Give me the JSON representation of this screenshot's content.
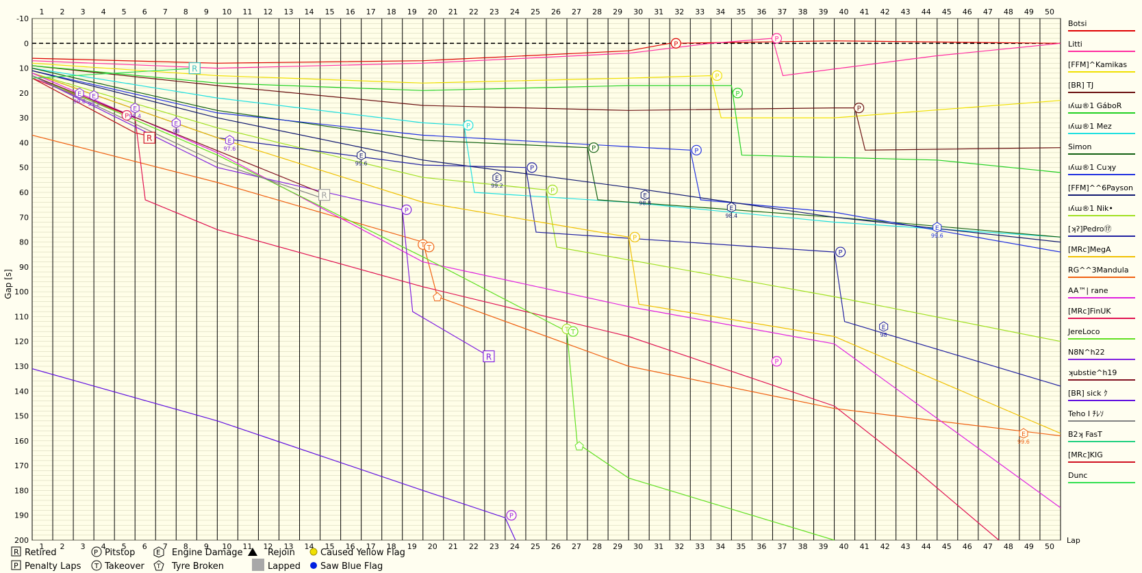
{
  "chart_data": {
    "type": "line",
    "title": "",
    "xlabel": "Lap",
    "ylabel": "Gap [s]",
    "xlim": [
      1,
      51
    ],
    "ylim": [
      -10,
      200
    ],
    "y_ticks": [
      -10,
      0,
      10,
      20,
      30,
      40,
      50,
      60,
      70,
      80,
      90,
      100,
      110,
      120,
      130,
      140,
      150,
      160,
      170,
      180,
      190,
      200
    ],
    "x_ticks": [
      1,
      2,
      3,
      4,
      5,
      6,
      7,
      8,
      9,
      10,
      11,
      12,
      13,
      14,
      15,
      16,
      17,
      18,
      19,
      20,
      21,
      22,
      23,
      24,
      25,
      26,
      27,
      28,
      29,
      30,
      31,
      32,
      33,
      34,
      35,
      36,
      37,
      38,
      39,
      40,
      41,
      42,
      43,
      44,
      45,
      46,
      47,
      48,
      49,
      50
    ],
    "legend_position": "right",
    "series": [
      {
        "name": "Botsi",
        "color": "#e00000",
        "points": [
          [
            1,
            6
          ],
          [
            10,
            8
          ],
          [
            20,
            7
          ],
          [
            30,
            3
          ],
          [
            32,
            0
          ],
          [
            40,
            -1
          ],
          [
            51,
            0
          ]
        ]
      },
      {
        "name": "Litti",
        "color": "#ff2aa0",
        "points": [
          [
            1,
            7
          ],
          [
            10,
            10
          ],
          [
            20,
            8
          ],
          [
            30,
            4
          ],
          [
            34,
            0
          ],
          [
            37,
            -2
          ],
          [
            37.5,
            13
          ],
          [
            45,
            5
          ],
          [
            51,
            0
          ]
        ]
      },
      {
        "name": "[FFM]^Kamikas",
        "color": "#f0e000",
        "points": [
          [
            1,
            8
          ],
          [
            10,
            13
          ],
          [
            20,
            16
          ],
          [
            30,
            14
          ],
          [
            34,
            13
          ],
          [
            34.5,
            30
          ],
          [
            40,
            30
          ],
          [
            51,
            23
          ]
        ]
      },
      {
        "name": "[BR] TJ",
        "color": "#6a1010",
        "points": [
          [
            1,
            9
          ],
          [
            10,
            17
          ],
          [
            20,
            25
          ],
          [
            30,
            27
          ],
          [
            40,
            26
          ],
          [
            41,
            26
          ],
          [
            41.5,
            43
          ],
          [
            51,
            42
          ]
        ]
      },
      {
        "name": "ıʎɯ®1 GáboR",
        "color": "#20d020",
        "points": [
          [
            1,
            9
          ],
          [
            10,
            16
          ],
          [
            20,
            19
          ],
          [
            30,
            17
          ],
          [
            35,
            17
          ],
          [
            35.5,
            45
          ],
          [
            45,
            47
          ],
          [
            51,
            52
          ]
        ]
      },
      {
        "name": "ıʎɯ®1 Mez",
        "color": "#20e0e0",
        "points": [
          [
            1,
            10
          ],
          [
            10,
            22
          ],
          [
            20,
            32
          ],
          [
            22,
            33
          ],
          [
            22.5,
            60
          ],
          [
            30,
            64
          ],
          [
            40,
            72
          ],
          [
            51,
            78
          ]
        ]
      },
      {
        "name": "Simon",
        "color": "#106010",
        "points": [
          [
            1,
            10
          ],
          [
            10,
            27
          ],
          [
            20,
            39
          ],
          [
            28,
            42
          ],
          [
            28.5,
            63
          ],
          [
            40,
            70
          ],
          [
            51,
            78
          ]
        ]
      },
      {
        "name": "ıʎɯ®1 Cuʞy",
        "color": "#2030e0",
        "points": [
          [
            1,
            11
          ],
          [
            10,
            28
          ],
          [
            20,
            37
          ],
          [
            33,
            43
          ],
          [
            33.5,
            63
          ],
          [
            40,
            68
          ],
          [
            51,
            84
          ]
        ]
      },
      {
        "name": "[FFM]^^6Payson",
        "color": "#101870",
        "points": [
          [
            1,
            11
          ],
          [
            10,
            30
          ],
          [
            20,
            47
          ],
          [
            30,
            58
          ],
          [
            40,
            70
          ],
          [
            51,
            80
          ]
        ]
      },
      {
        "name": "ıʎɯ®1 Nik•",
        "color": "#a0e020",
        "points": [
          [
            1,
            12
          ],
          [
            10,
            34
          ],
          [
            20,
            54
          ],
          [
            26,
            59
          ],
          [
            26.5,
            82
          ],
          [
            40,
            102
          ],
          [
            51,
            120
          ]
        ]
      },
      {
        "name": "[ʞʔ]Pedro⑰",
        "color": "#2020a0",
        "points": [
          [
            1,
            12
          ],
          [
            10,
            38
          ],
          [
            20,
            49
          ],
          [
            25,
            50
          ],
          [
            25.5,
            76
          ],
          [
            40,
            84
          ],
          [
            40.5,
            112
          ],
          [
            51,
            138
          ]
        ]
      },
      {
        "name": "[MRc]MegA",
        "color": "#f0c000",
        "points": [
          [
            1,
            12
          ],
          [
            10,
            38
          ],
          [
            20,
            64
          ],
          [
            30,
            78
          ],
          [
            30.5,
            105
          ],
          [
            40,
            118
          ],
          [
            51,
            157
          ]
        ]
      },
      {
        "name": "RG^^3Mandula",
        "color": "#f06010",
        "points": [
          [
            1,
            37
          ],
          [
            10,
            56
          ],
          [
            20,
            80
          ],
          [
            20.7,
            102
          ],
          [
            30,
            130
          ],
          [
            40,
            147
          ],
          [
            51,
            158
          ]
        ]
      },
      {
        "name": "AA™| rane",
        "color": "#e020e0",
        "points": [
          [
            1,
            12
          ],
          [
            10,
            44
          ],
          [
            20,
            88
          ],
          [
            30,
            106
          ],
          [
            40,
            121
          ],
          [
            51,
            187
          ]
        ]
      },
      {
        "name": "[MRc]FinUK",
        "color": "#e01050",
        "points": [
          [
            1,
            14
          ],
          [
            6,
            30
          ],
          [
            6.5,
            63
          ],
          [
            10,
            75
          ],
          [
            20,
            98
          ],
          [
            30,
            118
          ],
          [
            40,
            146
          ],
          [
            44,
            172
          ],
          [
            48,
            200
          ]
        ]
      },
      {
        "name": "JereLoco",
        "color": "#60e020",
        "points": [
          [
            1,
            13
          ],
          [
            10,
            45
          ],
          [
            20,
            86
          ],
          [
            27,
            116
          ],
          [
            27.5,
            161
          ],
          [
            30,
            175
          ],
          [
            40,
            200
          ]
        ]
      },
      {
        "name": "N8N^h22",
        "color": "#8020e0",
        "points": [
          [
            1,
            13
          ],
          [
            10,
            50
          ],
          [
            19,
            67
          ],
          [
            19.5,
            108
          ],
          [
            23,
            125
          ],
          [
            23.2,
            125
          ]
        ]
      },
      {
        "name": "ʞubstie^h19",
        "color": "#801020",
        "points": [
          [
            1,
            13
          ],
          [
            15,
            60
          ]
        ]
      },
      {
        "name": "[BR] sick ｸ",
        "color": "#6010e0",
        "points": [
          [
            1,
            131
          ],
          [
            10,
            152
          ],
          [
            20,
            180
          ],
          [
            24,
            191
          ],
          [
            24.5,
            200
          ]
        ]
      },
      {
        "name": "Teho I ﾁﾚｿ",
        "color": "#808080",
        "points": [
          [
            1,
            13
          ],
          [
            10,
            48
          ],
          [
            15,
            62
          ]
        ]
      },
      {
        "name": "B2ʞ FasT",
        "color": "#20d080",
        "points": [
          [
            1,
            14
          ],
          [
            6,
            36
          ]
        ]
      },
      {
        "name": "[MRc]KIG",
        "color": "#d01020",
        "points": [
          [
            1,
            14
          ],
          [
            6,
            36
          ],
          [
            7,
            38
          ]
        ]
      },
      {
        "name": "Dunc",
        "color": "#30e050",
        "points": [
          [
            1,
            14
          ],
          [
            9,
            10
          ]
        ]
      }
    ],
    "events": [
      {
        "type": "R",
        "lap": 8.9,
        "gap": 10,
        "color": "#40c0c0"
      },
      {
        "type": "R",
        "lap": 6.7,
        "gap": 38,
        "color": "#d01020"
      },
      {
        "type": "R",
        "lap": 15.2,
        "gap": 61,
        "color": "#a0a0a0"
      },
      {
        "type": "R",
        "lap": 23.2,
        "gap": 126,
        "color": "#8020e0"
      },
      {
        "type": "P",
        "lap": 32.3,
        "gap": 0,
        "color": "#e00000"
      },
      {
        "type": "P",
        "lap": 37.2,
        "gap": -2,
        "color": "#ff2aa0"
      },
      {
        "type": "P",
        "lap": 34.3,
        "gap": 13,
        "color": "#f0e000"
      },
      {
        "type": "P",
        "lap": 41.2,
        "gap": 26,
        "color": "#6a1010"
      },
      {
        "type": "P",
        "lap": 35.3,
        "gap": 20,
        "color": "#20d020"
      },
      {
        "type": "P",
        "lap": 22.2,
        "gap": 33,
        "color": "#20e0e0"
      },
      {
        "type": "P",
        "lap": 28.3,
        "gap": 42,
        "color": "#106010"
      },
      {
        "type": "P",
        "lap": 33.3,
        "gap": 43,
        "color": "#2030e0"
      },
      {
        "type": "P",
        "lap": 26.3,
        "gap": 59,
        "color": "#a0e020"
      },
      {
        "type": "P",
        "lap": 25.3,
        "gap": 50,
        "color": "#2020a0"
      },
      {
        "type": "P",
        "lap": 40.3,
        "gap": 84,
        "color": "#2020a0"
      },
      {
        "type": "P",
        "lap": 30.3,
        "gap": 78,
        "color": "#f0c000"
      },
      {
        "type": "P",
        "lap": 5.6,
        "gap": 29,
        "color": "#e02060"
      },
      {
        "type": "P",
        "lap": 19.2,
        "gap": 67,
        "color": "#8020e0"
      },
      {
        "type": "P",
        "lap": 37.2,
        "gap": 128,
        "color": "#e020e0"
      },
      {
        "type": "P",
        "lap": 24.3,
        "gap": 190,
        "color": "#a020e0"
      },
      {
        "type": "T",
        "lap": 20.0,
        "gap": 81,
        "color": "#f06010"
      },
      {
        "type": "T",
        "lap": 20.3,
        "gap": 82,
        "color": "#f06010"
      },
      {
        "type": "T",
        "lap": 27.0,
        "gap": 115,
        "color": "#a0e020"
      },
      {
        "type": "T",
        "lap": 27.3,
        "gap": 116,
        "color": "#60e020"
      },
      {
        "type": "E",
        "lap": 3.3,
        "gap": 20,
        "color": "#8020e0",
        "label": "99.6"
      },
      {
        "type": "E",
        "lap": 4.0,
        "gap": 21,
        "color": "#8020e0",
        "label": "99.2"
      },
      {
        "type": "E",
        "lap": 6.0,
        "gap": 26,
        "color": "#8020e0",
        "label": "98.4"
      },
      {
        "type": "E",
        "lap": 8.0,
        "gap": 32,
        "color": "#8020e0",
        "label": "98"
      },
      {
        "type": "E",
        "lap": 10.6,
        "gap": 39,
        "color": "#8020e0",
        "label": "97.6"
      },
      {
        "type": "E",
        "lap": 17.0,
        "gap": 45,
        "color": "#101870",
        "label": "99.6"
      },
      {
        "type": "E",
        "lap": 23.6,
        "gap": 54,
        "color": "#101870",
        "label": "99.2"
      },
      {
        "type": "E",
        "lap": 30.8,
        "gap": 61,
        "color": "#101870",
        "label": "98.8"
      },
      {
        "type": "E",
        "lap": 35.0,
        "gap": 66,
        "color": "#101870",
        "label": "98.4"
      },
      {
        "type": "E",
        "lap": 42.4,
        "gap": 114,
        "color": "#2020a0",
        "label": "98"
      },
      {
        "type": "E",
        "lap": 45.0,
        "gap": 74,
        "color": "#2030e0",
        "label": "99.6"
      },
      {
        "type": "E",
        "lap": 49.2,
        "gap": 157,
        "color": "#f06010",
        "label": "99.6"
      },
      {
        "type": "Y",
        "lap": 20.7,
        "gap": 102,
        "color": "#f06010"
      },
      {
        "type": "Y",
        "lap": 27.6,
        "gap": 162,
        "color": "#60e020"
      }
    ]
  },
  "key": {
    "retired": "Retired",
    "penalty": "Penalty Laps",
    "pitstop": "Pitstop",
    "takeover": "Takeover",
    "engine": "Engine Damage",
    "tyre": "Tyre Broken",
    "rejoin": "Rejoin",
    "lapped": "Lapped",
    "yellow": "Caused Yellow Flag",
    "blue": "Saw Blue Flag"
  }
}
